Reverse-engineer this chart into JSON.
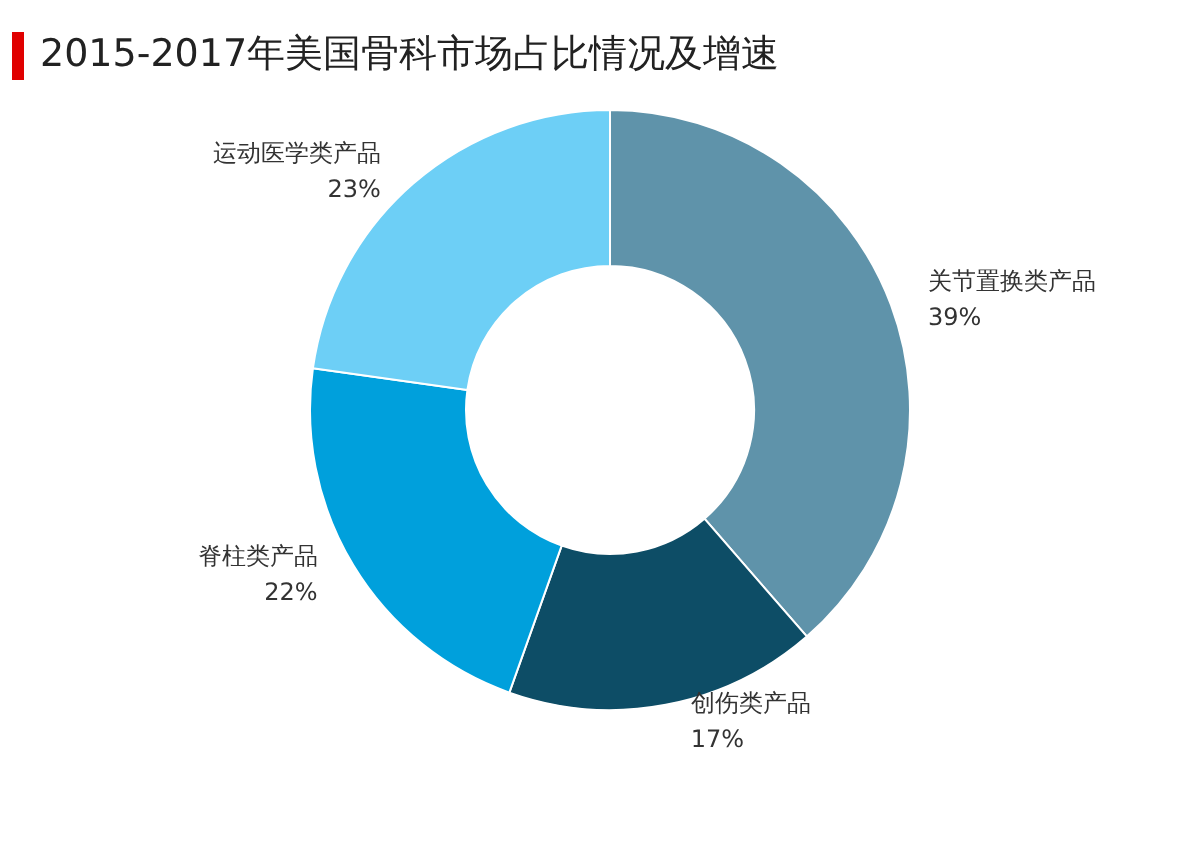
{
  "chart_data": {
    "type": "donut",
    "title": "2015-2017年美国骨科市场占比情况及增速",
    "categories": [
      "关节置换类产品",
      "创伤类产品",
      "脊柱类产品",
      "运动医学类产品"
    ],
    "values": [
      39,
      17,
      22,
      23
    ],
    "value_labels": [
      "39%",
      "17%",
      "22%",
      "23%"
    ],
    "colors": [
      "#5f93aa",
      "#0d4d66",
      "#00a0dc",
      "#6dcff6"
    ],
    "legend": false
  }
}
